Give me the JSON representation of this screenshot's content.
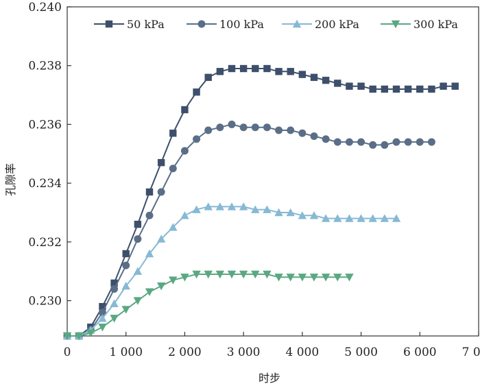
{
  "chart_data": {
    "type": "line",
    "title": "",
    "xlabel": "时步",
    "ylabel": "孔隙率",
    "xlim": [
      0,
      7000
    ],
    "ylim": [
      0.2288,
      0.24
    ],
    "xticks": [
      0,
      1000,
      2000,
      3000,
      4000,
      5000,
      6000,
      7000
    ],
    "xtick_labels": [
      "0",
      "1 000",
      "2 000",
      "3 000",
      "4 000",
      "5 000",
      "6 000",
      "7 000"
    ],
    "yticks": [
      0.23,
      0.232,
      0.234,
      0.236,
      0.238,
      0.24
    ],
    "ytick_labels": [
      "0.230",
      "0.232",
      "0.234",
      "0.236",
      "0.238",
      "0.240"
    ],
    "grid": false,
    "legend_position": "top",
    "series": [
      {
        "name": "50 kPa",
        "marker": "square",
        "color": "#3d4f6b",
        "x": [
          0,
          200,
          400,
          600,
          800,
          1000,
          1200,
          1400,
          1600,
          1800,
          2000,
          2200,
          2400,
          2600,
          2800,
          3000,
          3200,
          3400,
          3600,
          3800,
          4000,
          4200,
          4400,
          4600,
          4800,
          5000,
          5200,
          5400,
          5600,
          5800,
          6000,
          6200,
          6400,
          6600
        ],
        "y": [
          0.2288,
          0.2288,
          0.2291,
          0.2298,
          0.2306,
          0.2316,
          0.2326,
          0.2337,
          0.2347,
          0.2357,
          0.2365,
          0.2371,
          0.2376,
          0.2378,
          0.2379,
          0.2379,
          0.2379,
          0.2379,
          0.2378,
          0.2378,
          0.2377,
          0.2376,
          0.2375,
          0.2374,
          0.2373,
          0.2373,
          0.2372,
          0.2372,
          0.2372,
          0.2372,
          0.2372,
          0.2372,
          0.2373,
          0.2373
        ]
      },
      {
        "name": "100 kPa",
        "marker": "circle",
        "color": "#5a6e87",
        "x": [
          0,
          200,
          400,
          600,
          800,
          1000,
          1200,
          1400,
          1600,
          1800,
          2000,
          2200,
          2400,
          2600,
          2800,
          3000,
          3200,
          3400,
          3600,
          3800,
          4000,
          4200,
          4400,
          4600,
          4800,
          5000,
          5200,
          5400,
          5600,
          5800,
          6000,
          6200
        ],
        "y": [
          0.2288,
          0.2288,
          0.229,
          0.2296,
          0.2304,
          0.2312,
          0.2321,
          0.2329,
          0.2337,
          0.2345,
          0.2351,
          0.2355,
          0.2358,
          0.2359,
          0.236,
          0.2359,
          0.2359,
          0.2359,
          0.2358,
          0.2358,
          0.2357,
          0.2356,
          0.2355,
          0.2354,
          0.2354,
          0.2354,
          0.2353,
          0.2353,
          0.2354,
          0.2354,
          0.2354,
          0.2354
        ]
      },
      {
        "name": "200 kPa",
        "marker": "triangle-up",
        "color": "#86b9d4",
        "x": [
          0,
          200,
          400,
          600,
          800,
          1000,
          1200,
          1400,
          1600,
          1800,
          2000,
          2200,
          2400,
          2600,
          2800,
          3000,
          3200,
          3400,
          3600,
          3800,
          4000,
          4200,
          4400,
          4600,
          4800,
          5000,
          5200,
          5400,
          5600
        ],
        "y": [
          0.2288,
          0.2288,
          0.229,
          0.2294,
          0.2299,
          0.2305,
          0.231,
          0.2316,
          0.2321,
          0.2325,
          0.2329,
          0.2331,
          0.2332,
          0.2332,
          0.2332,
          0.2332,
          0.2331,
          0.2331,
          0.233,
          0.233,
          0.2329,
          0.2329,
          0.2328,
          0.2328,
          0.2328,
          0.2328,
          0.2328,
          0.2328,
          0.2328
        ]
      },
      {
        "name": "300 kPa",
        "marker": "triangle-down",
        "color": "#5aa882",
        "x": [
          0,
          200,
          400,
          600,
          800,
          1000,
          1200,
          1400,
          1600,
          1800,
          2000,
          2200,
          2400,
          2600,
          2800,
          3000,
          3200,
          3400,
          3600,
          3800,
          4000,
          4200,
          4400,
          4600,
          4800
        ],
        "y": [
          0.2288,
          0.2288,
          0.2289,
          0.2291,
          0.2294,
          0.2297,
          0.23,
          0.2303,
          0.2305,
          0.2307,
          0.2308,
          0.2309,
          0.2309,
          0.2309,
          0.2309,
          0.2309,
          0.2309,
          0.2309,
          0.2308,
          0.2308,
          0.2308,
          0.2308,
          0.2308,
          0.2308,
          0.2308
        ]
      }
    ]
  }
}
